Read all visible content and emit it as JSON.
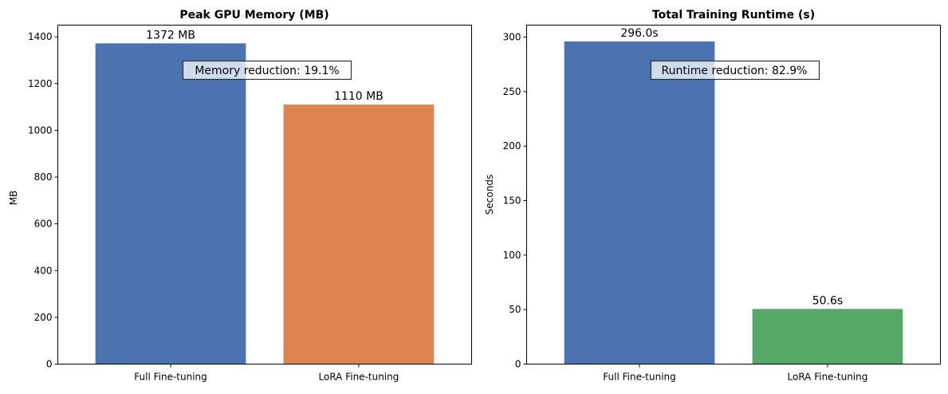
{
  "chart_data": [
    {
      "type": "bar",
      "title": "Peak GPU Memory (MB)",
      "xlabel": "",
      "ylabel": "MB",
      "ylim": [
        0,
        1450
      ],
      "yticks": [
        0,
        200,
        400,
        600,
        800,
        1000,
        1200,
        1400
      ],
      "categories": [
        "Full Fine-tuning",
        "LoRA Fine-tuning"
      ],
      "values": [
        1372,
        1110
      ],
      "value_labels": [
        "1372 MB",
        "1110 MB"
      ],
      "colors": [
        "#4c72b0",
        "#dd8452"
      ],
      "annotation": "Memory reduction: 19.1%"
    },
    {
      "type": "bar",
      "title": "Total Training Runtime (s)",
      "xlabel": "",
      "ylabel": "Seconds",
      "ylim": [
        0,
        311
      ],
      "yticks": [
        0,
        50,
        100,
        150,
        200,
        250,
        300
      ],
      "categories": [
        "Full Fine-tuning",
        "LoRA Fine-tuning"
      ],
      "values": [
        296.0,
        50.6
      ],
      "value_labels": [
        "296.0s",
        "50.6s"
      ],
      "colors": [
        "#4c72b0",
        "#55a868"
      ],
      "annotation": "Runtime reduction: 82.9%"
    }
  ]
}
